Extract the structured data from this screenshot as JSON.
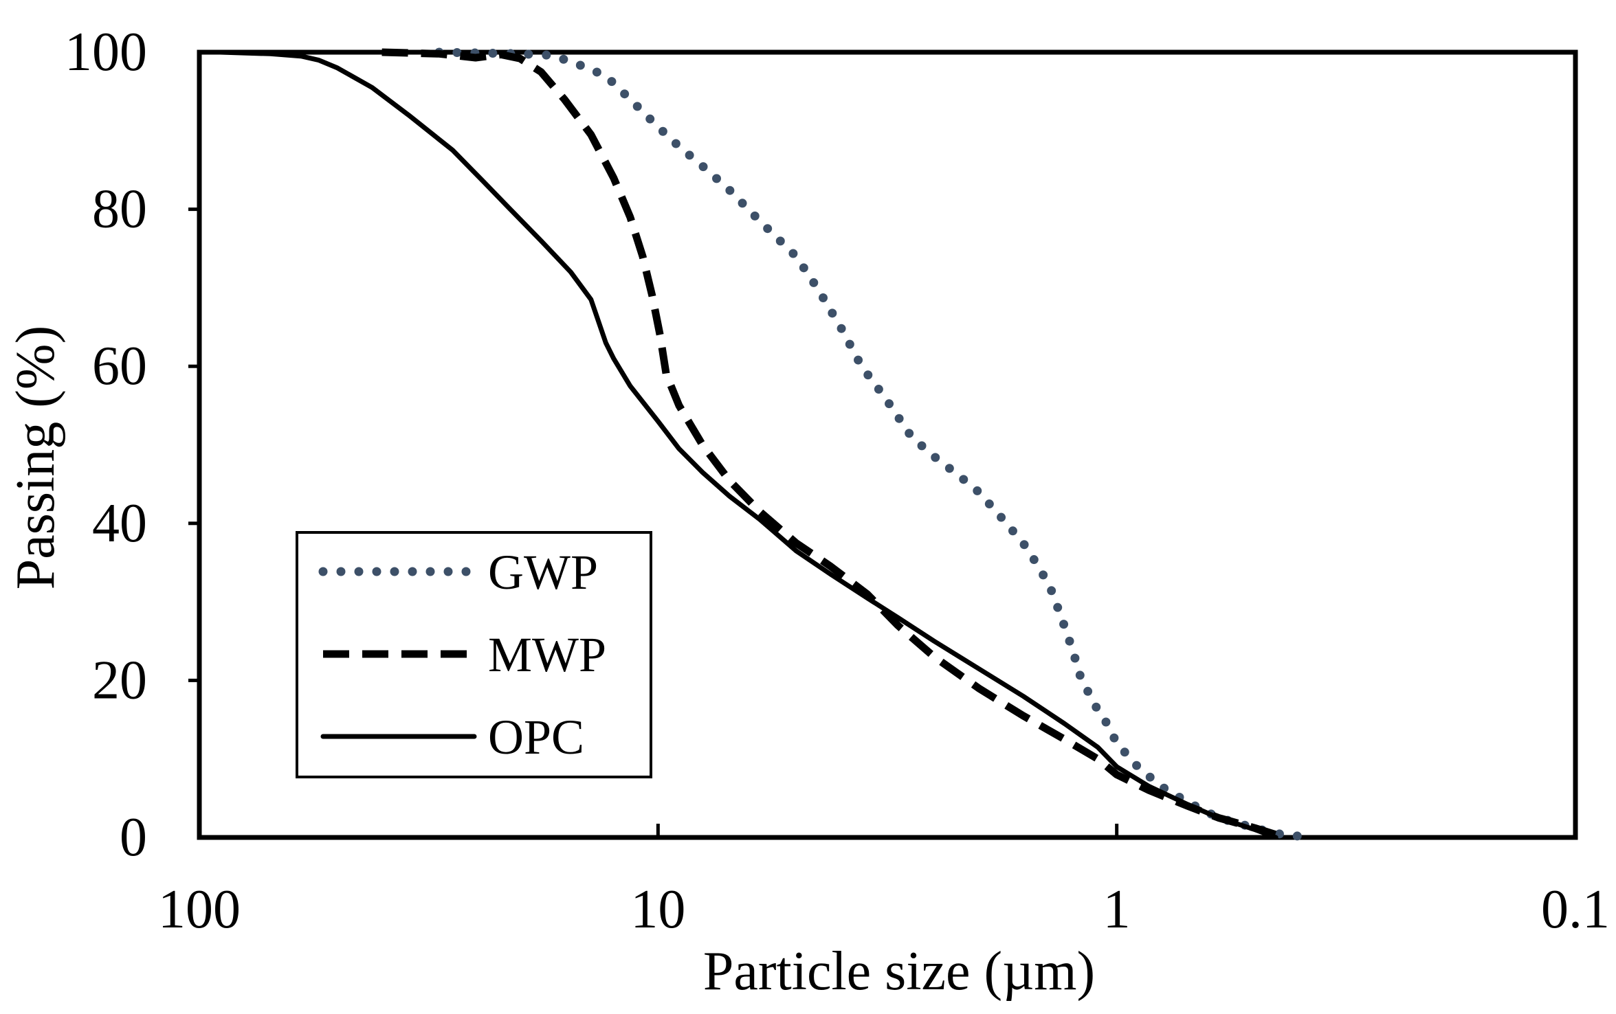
{
  "chart_data": {
    "type": "line",
    "title": "",
    "xlabel": "Particle size (µm)",
    "ylabel": "Passing (%)",
    "x_scale": "log",
    "x_reversed": true,
    "xlim": [
      100,
      0.1
    ],
    "ylim": [
      0,
      100
    ],
    "x_ticks": [
      100,
      10,
      1,
      0.1
    ],
    "x_tick_labels": [
      "100",
      "10",
      "1",
      "0.1"
    ],
    "y_ticks": [
      0,
      20,
      40,
      60,
      80,
      100
    ],
    "y_tick_labels": [
      "0",
      "20",
      "40",
      "60",
      "80",
      "100"
    ],
    "grid": false,
    "legend_position": "bottom-left",
    "series": [
      {
        "name": "GWP",
        "style": "dotted",
        "color": "#3d5068",
        "points": [
          [
            30,
            100
          ],
          [
            20,
            99.8
          ],
          [
            17,
            99.6
          ],
          [
            15,
            98.5
          ],
          [
            13,
            97
          ],
          [
            11.5,
            94
          ],
          [
            10,
            90.5
          ],
          [
            9,
            88
          ],
          [
            8,
            85.5
          ],
          [
            7,
            82.5
          ],
          [
            6,
            78.5
          ],
          [
            5,
            74
          ],
          [
            4.5,
            70
          ],
          [
            4,
            65
          ],
          [
            3.6,
            60
          ],
          [
            3.2,
            56
          ],
          [
            2.8,
            51
          ],
          [
            2.5,
            48.5
          ],
          [
            2.2,
            46
          ],
          [
            2,
            44
          ],
          [
            1.8,
            41
          ],
          [
            1.6,
            37.5
          ],
          [
            1.5,
            35
          ],
          [
            1.4,
            32
          ],
          [
            1.32,
            28
          ],
          [
            1.25,
            24
          ],
          [
            1.2,
            20.5
          ],
          [
            1.12,
            17
          ],
          [
            1.05,
            14.5
          ],
          [
            1.0,
            12
          ],
          [
            0.9,
            9
          ],
          [
            0.8,
            6.5
          ],
          [
            0.7,
            4.5
          ],
          [
            0.6,
            2.5
          ],
          [
            0.5,
            1.2
          ],
          [
            0.45,
            0.5
          ],
          [
            0.38,
            0
          ]
        ]
      },
      {
        "name": "MWP",
        "style": "dashed",
        "color": "#000000",
        "points": [
          [
            40,
            100
          ],
          [
            30,
            99.8
          ],
          [
            25,
            99.3
          ],
          [
            22,
            99.7
          ],
          [
            20,
            99.2
          ],
          [
            18,
            97.5
          ],
          [
            16,
            94
          ],
          [
            14,
            89.5
          ],
          [
            12.5,
            84
          ],
          [
            11.5,
            79
          ],
          [
            10.8,
            74
          ],
          [
            10.3,
            69
          ],
          [
            9.9,
            64
          ],
          [
            9.6,
            59
          ],
          [
            9,
            55
          ],
          [
            8,
            50
          ],
          [
            7,
            45.5
          ],
          [
            6,
            41.5
          ],
          [
            5,
            37.5
          ],
          [
            4.2,
            34.5
          ],
          [
            3.5,
            31
          ],
          [
            3,
            27
          ],
          [
            2.5,
            23
          ],
          [
            2,
            19
          ],
          [
            1.6,
            15.5
          ],
          [
            1.3,
            12.5
          ],
          [
            1.1,
            10
          ],
          [
            1.0,
            8
          ],
          [
            0.85,
            6
          ],
          [
            0.7,
            4
          ],
          [
            0.6,
            2.5
          ],
          [
            0.5,
            1.2
          ],
          [
            0.43,
            0
          ]
        ]
      },
      {
        "name": "OPC",
        "style": "solid",
        "color": "#000000",
        "points": [
          [
            90,
            100
          ],
          [
            70,
            99.8
          ],
          [
            60,
            99.5
          ],
          [
            55,
            99
          ],
          [
            50,
            98
          ],
          [
            42,
            95.5
          ],
          [
            35,
            92
          ],
          [
            28,
            87.5
          ],
          [
            24,
            83.5
          ],
          [
            21,
            80
          ],
          [
            18,
            76
          ],
          [
            15.5,
            72
          ],
          [
            14,
            68.5
          ],
          [
            13,
            63
          ],
          [
            12.5,
            61
          ],
          [
            11.5,
            57.5
          ],
          [
            10,
            53
          ],
          [
            9,
            49.5
          ],
          [
            8,
            46.5
          ],
          [
            7,
            43.5
          ],
          [
            6,
            40.5
          ],
          [
            5,
            36.5
          ],
          [
            4.2,
            33.5
          ],
          [
            3.5,
            30.5
          ],
          [
            3,
            28
          ],
          [
            2.5,
            25
          ],
          [
            2,
            21.5
          ],
          [
            1.6,
            18
          ],
          [
            1.3,
            14.5
          ],
          [
            1.1,
            11.5
          ],
          [
            1.0,
            9
          ],
          [
            0.85,
            6.5
          ],
          [
            0.7,
            4.2
          ],
          [
            0.6,
            2.5
          ],
          [
            0.5,
            1
          ],
          [
            0.45,
            0
          ]
        ]
      }
    ]
  }
}
